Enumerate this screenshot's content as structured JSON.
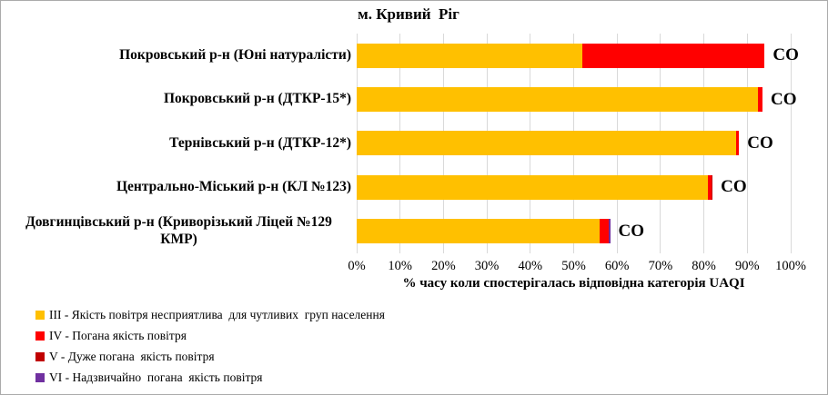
{
  "chart_data": {
    "type": "bar",
    "orientation": "horizontal",
    "stacked": true,
    "title": "м. Кривий  Ріг",
    "xlabel": "% часу коли спостерігалась відповідна категорія UAQI",
    "xlim": [
      0,
      100
    ],
    "xticks": [
      "0%",
      "10%",
      "20%",
      "30%",
      "40%",
      "50%",
      "60%",
      "70%",
      "80%",
      "90%",
      "100%"
    ],
    "grid": "vertical",
    "grid_color": "#D9D9D9",
    "legend_position": "bottom-left",
    "categories": [
      "Покровський р-н (Юні натуралісти)",
      "Покровський р-н (ДТКР-15*)",
      "Тернівський р-н (ДТКР-12*)",
      "Центрально-Міський р-н (КЛ №123)",
      "Довгинцівський р-н (Криворізький Ліцей №129 КМР)"
    ],
    "series": [
      {
        "key": "III",
        "name": "III - Якість повітря несприятлива  для чутливих  груп населення",
        "color": "#FFC000",
        "values": [
          52,
          92.5,
          87.5,
          81,
          56
        ]
      },
      {
        "key": "IV",
        "name": "IV - Погана якість повітря",
        "color": "#FF0000",
        "values": [
          42,
          1,
          0.6,
          0.7,
          2
        ]
      },
      {
        "key": "V",
        "name": "V - Дуже погана  якість повітря",
        "color": "#C00000",
        "values": [
          0,
          0,
          0,
          0.3,
          0
        ]
      },
      {
        "key": "VI",
        "name": "VI - Надзвичайно  погана  якість повітря",
        "color": "#7030A0",
        "values": [
          0,
          0,
          0,
          0,
          0.4
        ]
      }
    ],
    "end_labels": [
      "СО",
      "СО",
      "СО",
      "СО",
      "СО"
    ]
  }
}
